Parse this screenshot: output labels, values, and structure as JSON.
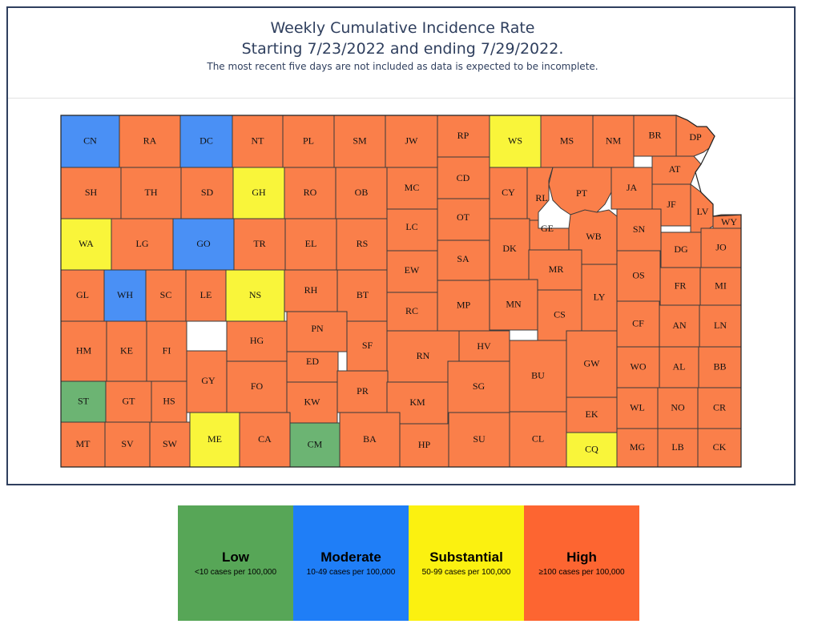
{
  "header": {
    "title_line1": "Weekly Cumulative Incidence Rate",
    "title_line2": "Starting 7/23/2022 and ending 7/29/2022.",
    "note": "The most recent five days are not included as data is expected to be incomplete."
  },
  "colors": {
    "low": "#6cb473",
    "moderate": "#4a90f5",
    "substantial": "#f9f53a",
    "high": "#fa7f4a",
    "legend_low": "#57a657",
    "legend_moderate": "#1f7ef7",
    "legend_substantial": "#fbf110",
    "legend_high": "#fd6531"
  },
  "legend": [
    {
      "key": "low",
      "name": "Low",
      "desc": "<10 cases per 100,000"
    },
    {
      "key": "moderate",
      "name": "Moderate",
      "desc": "10-49 cases per 100,000"
    },
    {
      "key": "substantial",
      "name": "Substantial",
      "desc": "50-99 cases per 100,000"
    },
    {
      "key": "high",
      "name": "High",
      "desc": "≥100 cases per 100,000"
    }
  ],
  "counties": [
    {
      "abbr": "CN",
      "level": "moderate"
    },
    {
      "abbr": "RA",
      "level": "high"
    },
    {
      "abbr": "DC",
      "level": "moderate"
    },
    {
      "abbr": "NT",
      "level": "high"
    },
    {
      "abbr": "PL",
      "level": "high"
    },
    {
      "abbr": "SM",
      "level": "high"
    },
    {
      "abbr": "JW",
      "level": "high"
    },
    {
      "abbr": "RP",
      "level": "high"
    },
    {
      "abbr": "WS",
      "level": "substantial"
    },
    {
      "abbr": "MS",
      "level": "high"
    },
    {
      "abbr": "NM",
      "level": "high"
    },
    {
      "abbr": "BR",
      "level": "high"
    },
    {
      "abbr": "DP",
      "level": "high"
    },
    {
      "abbr": "SH",
      "level": "high"
    },
    {
      "abbr": "TH",
      "level": "high"
    },
    {
      "abbr": "SD",
      "level": "high"
    },
    {
      "abbr": "GH",
      "level": "substantial"
    },
    {
      "abbr": "RO",
      "level": "high"
    },
    {
      "abbr": "OB",
      "level": "high"
    },
    {
      "abbr": "MC",
      "level": "high"
    },
    {
      "abbr": "CD",
      "level": "high"
    },
    {
      "abbr": "CY",
      "level": "high"
    },
    {
      "abbr": "RL",
      "level": "high"
    },
    {
      "abbr": "PT",
      "level": "high"
    },
    {
      "abbr": "JA",
      "level": "high"
    },
    {
      "abbr": "AT",
      "level": "high"
    },
    {
      "abbr": "JF",
      "level": "high"
    },
    {
      "abbr": "LV",
      "level": "high"
    },
    {
      "abbr": "WY",
      "level": "high"
    },
    {
      "abbr": "WA",
      "level": "substantial"
    },
    {
      "abbr": "LG",
      "level": "high"
    },
    {
      "abbr": "GO",
      "level": "moderate"
    },
    {
      "abbr": "TR",
      "level": "high"
    },
    {
      "abbr": "EL",
      "level": "high"
    },
    {
      "abbr": "RS",
      "level": "high"
    },
    {
      "abbr": "LC",
      "level": "high"
    },
    {
      "abbr": "OT",
      "level": "high"
    },
    {
      "abbr": "GE",
      "level": "high"
    },
    {
      "abbr": "WB",
      "level": "high"
    },
    {
      "abbr": "SN",
      "level": "high"
    },
    {
      "abbr": "DG",
      "level": "high"
    },
    {
      "abbr": "JO",
      "level": "high"
    },
    {
      "abbr": "GL",
      "level": "high"
    },
    {
      "abbr": "WH",
      "level": "moderate"
    },
    {
      "abbr": "SC",
      "level": "high"
    },
    {
      "abbr": "LE",
      "level": "high"
    },
    {
      "abbr": "NS",
      "level": "substantial"
    },
    {
      "abbr": "RH",
      "level": "high"
    },
    {
      "abbr": "BT",
      "level": "high"
    },
    {
      "abbr": "EW",
      "level": "high"
    },
    {
      "abbr": "SA",
      "level": "high"
    },
    {
      "abbr": "DK",
      "level": "high"
    },
    {
      "abbr": "MR",
      "level": "high"
    },
    {
      "abbr": "OS",
      "level": "high"
    },
    {
      "abbr": "LY",
      "level": "high"
    },
    {
      "abbr": "FR",
      "level": "high"
    },
    {
      "abbr": "MI",
      "level": "high"
    },
    {
      "abbr": "HM",
      "level": "high"
    },
    {
      "abbr": "KE",
      "level": "high"
    },
    {
      "abbr": "FI",
      "level": "high"
    },
    {
      "abbr": "HG",
      "level": "high"
    },
    {
      "abbr": "PN",
      "level": "high"
    },
    {
      "abbr": "SF",
      "level": "high"
    },
    {
      "abbr": "RC",
      "level": "high"
    },
    {
      "abbr": "MP",
      "level": "high"
    },
    {
      "abbr": "MN",
      "level": "high"
    },
    {
      "abbr": "CS",
      "level": "high"
    },
    {
      "abbr": "CF",
      "level": "high"
    },
    {
      "abbr": "AN",
      "level": "high"
    },
    {
      "abbr": "LN",
      "level": "high"
    },
    {
      "abbr": "GY",
      "level": "high"
    },
    {
      "abbr": "ED",
      "level": "high"
    },
    {
      "abbr": "RN",
      "level": "high"
    },
    {
      "abbr": "HV",
      "level": "high"
    },
    {
      "abbr": "BU",
      "level": "high"
    },
    {
      "abbr": "GW",
      "level": "high"
    },
    {
      "abbr": "WO",
      "level": "high"
    },
    {
      "abbr": "AL",
      "level": "high"
    },
    {
      "abbr": "BB",
      "level": "high"
    },
    {
      "abbr": "ST",
      "level": "low"
    },
    {
      "abbr": "GT",
      "level": "high"
    },
    {
      "abbr": "HS",
      "level": "high"
    },
    {
      "abbr": "FO",
      "level": "high"
    },
    {
      "abbr": "KW",
      "level": "high"
    },
    {
      "abbr": "PR",
      "level": "high"
    },
    {
      "abbr": "KM",
      "level": "high"
    },
    {
      "abbr": "SG",
      "level": "high"
    },
    {
      "abbr": "EK",
      "level": "high"
    },
    {
      "abbr": "WL",
      "level": "high"
    },
    {
      "abbr": "NO",
      "level": "high"
    },
    {
      "abbr": "CR",
      "level": "high"
    },
    {
      "abbr": "MT",
      "level": "high"
    },
    {
      "abbr": "SV",
      "level": "high"
    },
    {
      "abbr": "SW",
      "level": "high"
    },
    {
      "abbr": "ME",
      "level": "substantial"
    },
    {
      "abbr": "CA",
      "level": "high"
    },
    {
      "abbr": "CM",
      "level": "low"
    },
    {
      "abbr": "BA",
      "level": "high"
    },
    {
      "abbr": "HP",
      "level": "high"
    },
    {
      "abbr": "SU",
      "level": "high"
    },
    {
      "abbr": "CL",
      "level": "high"
    },
    {
      "abbr": "CQ",
      "level": "substantial"
    },
    {
      "abbr": "MG",
      "level": "high"
    },
    {
      "abbr": "LB",
      "level": "high"
    },
    {
      "abbr": "CK",
      "level": "high"
    }
  ]
}
